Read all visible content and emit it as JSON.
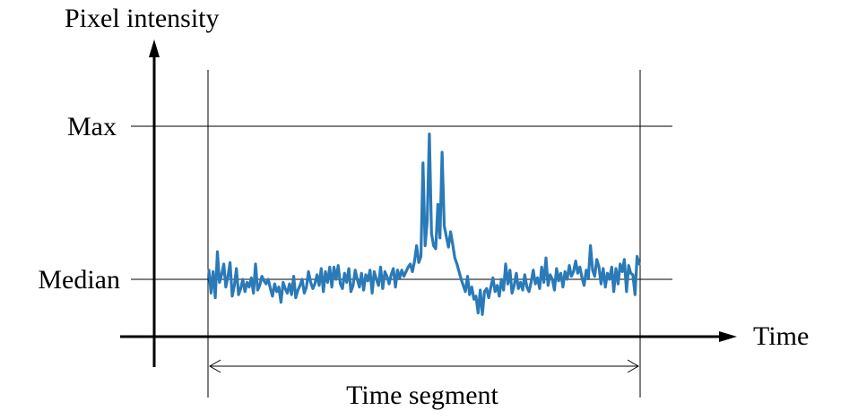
{
  "labels": {
    "y_axis": "Pixel intensity",
    "x_axis": "Time",
    "max": "Max",
    "median": "Median",
    "segment": "Time segment"
  },
  "colors": {
    "signal": "#2a7ab8",
    "lines": "#000000"
  },
  "signal": {
    "description_levels": [
      "Median",
      "Max"
    ],
    "median_level": 0,
    "max_level": 1,
    "samples": [
      0.06,
      -0.09,
      0.05,
      -0.12,
      0.18,
      -0.02,
      0.03,
      0.1,
      -0.05,
      0.02,
      0.11,
      -0.11,
      -0.04,
      0.07,
      -0.1,
      -0.06,
      0.0,
      -0.08,
      -0.02,
      -0.05,
      0.01,
      -0.09,
      0.1,
      -0.07,
      -0.04,
      0.02,
      -0.01,
      -0.03,
      0.0,
      -0.06,
      -0.11,
      -0.03,
      -0.08,
      -0.05,
      -0.15,
      -0.02,
      -0.06,
      -0.09,
      -0.03,
      -0.1,
      0.02,
      -0.12,
      -0.07,
      -0.04,
      0.0,
      -0.09,
      -0.05,
      0.05,
      -0.02,
      -0.06,
      -0.03,
      0.03,
      -0.04,
      0.07,
      -0.08,
      0.05,
      -0.02,
      0.08,
      -0.05,
      0.08,
      0.0,
      0.09,
      -0.03,
      -0.06,
      0.04,
      -0.02,
      0.07,
      -0.08,
      -0.04,
      0.06,
      0.0,
      -0.05,
      0.04,
      -0.07,
      0.03,
      -0.01,
      0.06,
      -0.09,
      0.05,
      0.0,
      -0.04,
      0.08,
      -0.06,
      0.05,
      0.02,
      -0.03,
      0.03,
      0.07,
      -0.05,
      0.06,
      0.01,
      0.06,
      0.02,
      0.05,
      0.08,
      0.1,
      0.05,
      0.12,
      0.22,
      0.11,
      0.15,
      0.76,
      0.22,
      0.38,
      0.95,
      0.3,
      0.22,
      0.2,
      0.49,
      0.27,
      0.83,
      0.35,
      0.28,
      0.21,
      0.31,
      0.23,
      0.14,
      0.1,
      0.05,
      0.0,
      -0.04,
      -0.08,
      0.02,
      -0.1,
      -0.05,
      -0.13,
      -0.11,
      -0.22,
      -0.07,
      -0.23,
      -0.08,
      -0.06,
      -0.12,
      -0.05,
      0.01,
      -0.08,
      -0.04,
      -0.11,
      0.0,
      -0.07,
      0.1,
      -0.03,
      0.06,
      -0.09,
      -0.04,
      0.04,
      -0.06,
      -0.02,
      -0.07,
      0.03,
      -0.05,
      -0.08,
      -0.02,
      0.06,
      -0.03,
      0.01,
      -0.06,
      0.08,
      -0.02,
      0.14,
      -0.04,
      0.03,
      0.0,
      -0.07,
      0.07,
      -0.01,
      0.04,
      -0.05,
      0.05,
      0.0,
      0.09,
      0.02,
      0.05,
      0.12,
      0.04,
      0.08,
      0.01,
      -0.04,
      0.06,
      0.01,
      0.22,
      0.06,
      0.02,
      0.13,
      0.08,
      -0.03,
      0.07,
      -0.05,
      0.04,
      0.0,
      0.08,
      -0.08,
      0.07,
      -0.03,
      0.1,
      0.05,
      0.13,
      -0.08,
      0.09,
      0.04,
      0.03,
      -0.1,
      0.15,
      0.1
    ]
  }
}
